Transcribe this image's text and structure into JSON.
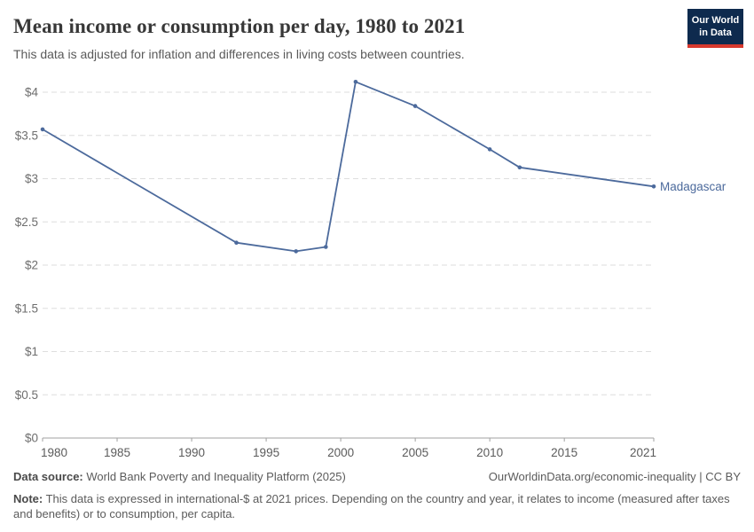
{
  "header": {
    "title": "Mean income or consumption per day, 1980 to 2021",
    "subtitle": "This data is adjusted for inflation and differences in living costs between countries.",
    "logo": {
      "line1": "Our World",
      "line2": "in Data"
    }
  },
  "chart_data": {
    "type": "line",
    "title": "Mean income or consumption per day, 1980 to 2021",
    "xlabel": "",
    "ylabel": "",
    "xlim": [
      1980,
      2021
    ],
    "ylim": [
      0,
      4.2
    ],
    "grid": "horizontal-dashed",
    "legend_position": "end-of-line-label",
    "x_ticks": [
      1980,
      1985,
      1990,
      1995,
      2000,
      2005,
      2010,
      2015,
      2021
    ],
    "y_ticks": [
      {
        "value": 0,
        "label": "$0"
      },
      {
        "value": 0.5,
        "label": "$0.5"
      },
      {
        "value": 1,
        "label": "$1"
      },
      {
        "value": 1.5,
        "label": "$1.5"
      },
      {
        "value": 2,
        "label": "$2"
      },
      {
        "value": 2.5,
        "label": "$2.5"
      },
      {
        "value": 3,
        "label": "$3"
      },
      {
        "value": 3.5,
        "label": "$3.5"
      },
      {
        "value": 4,
        "label": "$4"
      }
    ],
    "series": [
      {
        "name": "Madagascar",
        "color": "#4c6a9c",
        "points": [
          {
            "year": 1980,
            "value": 3.57
          },
          {
            "year": 1993,
            "value": 2.26
          },
          {
            "year": 1997,
            "value": 2.16
          },
          {
            "year": 1999,
            "value": 2.21
          },
          {
            "year": 2001,
            "value": 4.12
          },
          {
            "year": 2005,
            "value": 3.84
          },
          {
            "year": 2010,
            "value": 3.34
          },
          {
            "year": 2012,
            "value": 3.13
          },
          {
            "year": 2021,
            "value": 2.91
          }
        ]
      }
    ]
  },
  "footer": {
    "data_source_label": "Data source:",
    "data_source_text": " World Bank Poverty and Inequality Platform (2025)",
    "link_text": "OurWorldinData.org/economic-inequality | CC BY",
    "note_label": "Note:",
    "note_text": " This data is expressed in international-$ at 2021 prices. Depending on the country and year, it relates to income (measured after taxes and benefits) or to consumption, per capita."
  },
  "colors": {
    "line": "#4c6a9c",
    "end_label": "#4c6a9c",
    "gridline": "#dedede",
    "axis_line": "#a1a1a1",
    "x_tick_text": "#5b5b5b",
    "y_tick_text": "#6e6e6e",
    "logo_navy": "#0e2a4e",
    "logo_red": "#d7382d"
  }
}
